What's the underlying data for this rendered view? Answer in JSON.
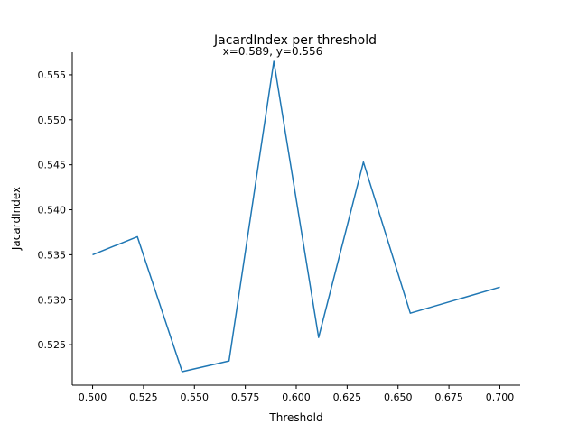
{
  "chart_data": {
    "type": "line",
    "title": "JacardIndex per threshold",
    "annotation": "x=0.589, y=0.556",
    "xlabel": "Threshold",
    "ylabel": "JacardIndex",
    "xlim": [
      0.49,
      0.71
    ],
    "ylim": [
      0.5205,
      0.5575
    ],
    "xticks": [
      0.5,
      0.525,
      0.55,
      0.575,
      0.6,
      0.625,
      0.65,
      0.675,
      0.7
    ],
    "xtick_labels": [
      "0.500",
      "0.525",
      "0.550",
      "0.575",
      "0.600",
      "0.625",
      "0.650",
      "0.675",
      "0.700"
    ],
    "yticks": [
      0.525,
      0.53,
      0.535,
      0.54,
      0.545,
      0.55,
      0.555
    ],
    "ytick_labels": [
      "0.525",
      "0.530",
      "0.535",
      "0.540",
      "0.545",
      "0.550",
      "0.555"
    ],
    "grid": false,
    "series_color": "#1f77b4",
    "series": [
      {
        "x": [
          0.5,
          0.522,
          0.544,
          0.567,
          0.589,
          0.611,
          0.633,
          0.656,
          0.7
        ],
        "y": [
          0.535,
          0.537,
          0.522,
          0.5232,
          0.5565,
          0.5258,
          0.5453,
          0.5285,
          0.5314
        ]
      }
    ]
  }
}
